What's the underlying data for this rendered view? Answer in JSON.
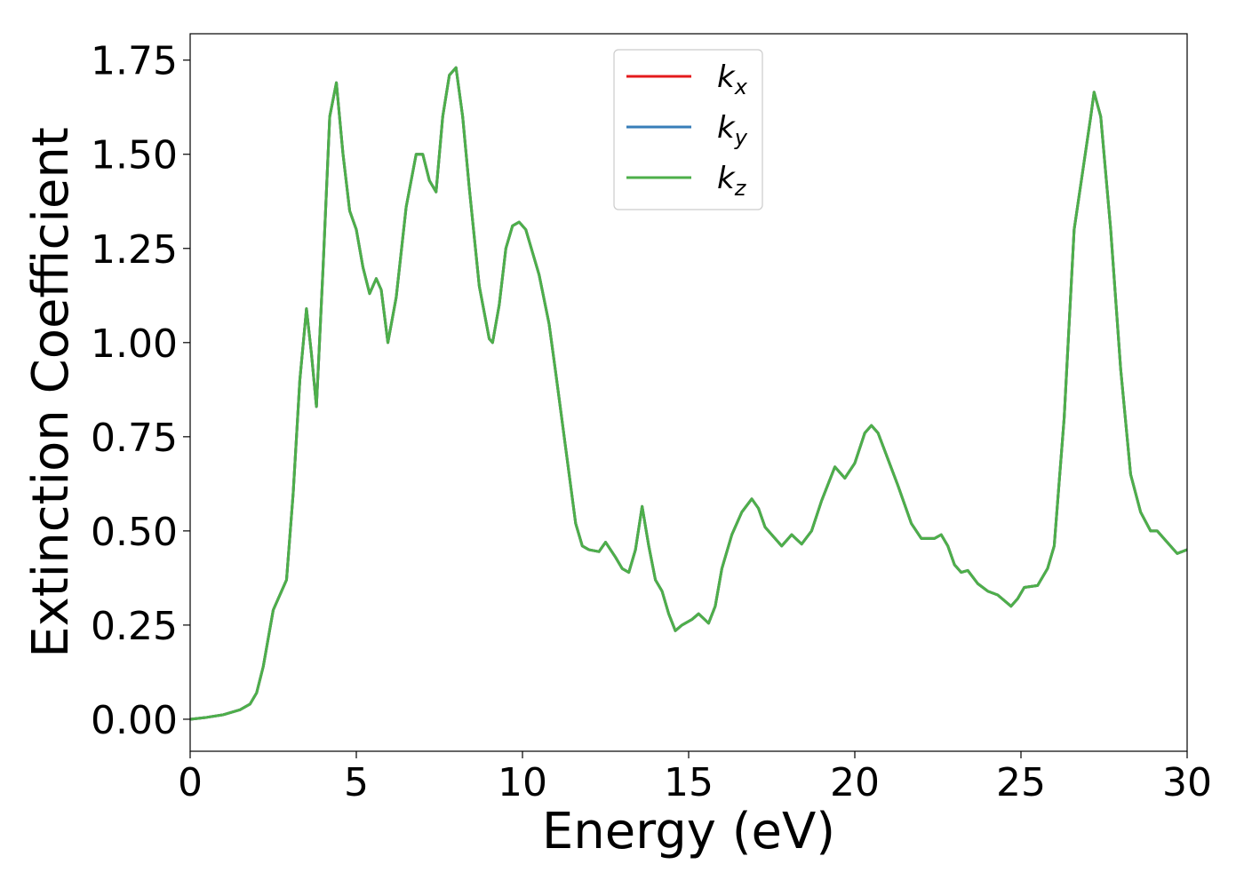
{
  "chart_data": {
    "type": "line",
    "xlabel": "Energy (eV)",
    "ylabel": "Extinction Coefficient",
    "xlim": [
      0,
      30
    ],
    "ylim": [
      -0.085,
      1.82
    ],
    "x_ticks": [
      "0",
      "5",
      "10",
      "15",
      "20",
      "25",
      "30"
    ],
    "x_tick_values": [
      0,
      5,
      10,
      15,
      20,
      25,
      30
    ],
    "y_ticks": [
      "0.00",
      "0.25",
      "0.50",
      "0.75",
      "1.00",
      "1.25",
      "1.50",
      "1.75"
    ],
    "y_tick_values": [
      0,
      0.25,
      0.5,
      0.75,
      1.0,
      1.25,
      1.5,
      1.75
    ],
    "grid": false,
    "legend_position": "top-center",
    "x": [
      0,
      0.5,
      1.0,
      1.5,
      1.8,
      2.0,
      2.2,
      2.5,
      2.7,
      2.9,
      3.1,
      3.3,
      3.5,
      3.65,
      3.8,
      4.0,
      4.2,
      4.4,
      4.6,
      4.8,
      5.0,
      5.2,
      5.4,
      5.6,
      5.75,
      5.95,
      6.2,
      6.5,
      6.8,
      7.0,
      7.2,
      7.4,
      7.6,
      7.8,
      8.0,
      8.2,
      8.4,
      8.7,
      9.0,
      9.1,
      9.3,
      9.5,
      9.7,
      9.9,
      10.1,
      10.3,
      10.5,
      10.8,
      11.0,
      11.3,
      11.6,
      11.8,
      12.0,
      12.3,
      12.5,
      12.8,
      13.0,
      13.2,
      13.4,
      13.6,
      13.8,
      14.0,
      14.2,
      14.4,
      14.6,
      14.8,
      15.1,
      15.3,
      15.6,
      15.8,
      16.0,
      16.3,
      16.6,
      16.9,
      17.1,
      17.3,
      17.6,
      17.8,
      18.1,
      18.4,
      18.7,
      19.0,
      19.4,
      19.7,
      20.0,
      20.3,
      20.5,
      20.7,
      21.0,
      21.3,
      21.7,
      22.0,
      22.4,
      22.6,
      22.8,
      23.0,
      23.2,
      23.4,
      23.7,
      24.0,
      24.3,
      24.7,
      24.9,
      25.1,
      25.5,
      25.8,
      26.0,
      26.3,
      26.6,
      26.9,
      27.1,
      27.2,
      27.4,
      27.7,
      28.0,
      28.3,
      28.6,
      28.9,
      29.1,
      29.4,
      29.7,
      30.0
    ],
    "series": [
      {
        "name": "k_x",
        "color": "#e41a1c",
        "values": [
          0.0,
          0.005,
          0.012,
          0.025,
          0.04,
          0.07,
          0.14,
          0.29,
          0.33,
          0.37,
          0.6,
          0.9,
          1.09,
          0.97,
          0.83,
          1.2,
          1.6,
          1.69,
          1.5,
          1.35,
          1.3,
          1.2,
          1.13,
          1.17,
          1.14,
          1.0,
          1.12,
          1.36,
          1.5,
          1.5,
          1.43,
          1.4,
          1.6,
          1.71,
          1.73,
          1.6,
          1.41,
          1.15,
          1.01,
          1.0,
          1.1,
          1.25,
          1.31,
          1.32,
          1.3,
          1.24,
          1.18,
          1.05,
          0.92,
          0.72,
          0.52,
          0.46,
          0.45,
          0.445,
          0.47,
          0.43,
          0.4,
          0.39,
          0.45,
          0.565,
          0.46,
          0.37,
          0.34,
          0.28,
          0.235,
          0.25,
          0.265,
          0.28,
          0.255,
          0.3,
          0.4,
          0.49,
          0.55,
          0.585,
          0.56,
          0.51,
          0.48,
          0.46,
          0.49,
          0.465,
          0.5,
          0.58,
          0.67,
          0.64,
          0.68,
          0.76,
          0.78,
          0.76,
          0.69,
          0.62,
          0.52,
          0.48,
          0.48,
          0.49,
          0.46,
          0.41,
          0.39,
          0.395,
          0.36,
          0.34,
          0.33,
          0.3,
          0.32,
          0.35,
          0.355,
          0.4,
          0.46,
          0.8,
          1.3,
          1.48,
          1.6,
          1.665,
          1.6,
          1.3,
          0.93,
          0.65,
          0.55,
          0.5,
          0.5,
          0.47,
          0.44,
          0.45
        ]
      },
      {
        "name": "k_y",
        "color": "#377eb8",
        "values": [
          0.0,
          0.005,
          0.012,
          0.025,
          0.04,
          0.07,
          0.14,
          0.29,
          0.33,
          0.37,
          0.6,
          0.9,
          1.09,
          0.97,
          0.83,
          1.2,
          1.6,
          1.69,
          1.5,
          1.35,
          1.3,
          1.2,
          1.13,
          1.17,
          1.14,
          1.0,
          1.12,
          1.36,
          1.5,
          1.5,
          1.43,
          1.4,
          1.6,
          1.71,
          1.73,
          1.6,
          1.41,
          1.15,
          1.01,
          1.0,
          1.1,
          1.25,
          1.31,
          1.32,
          1.3,
          1.24,
          1.18,
          1.05,
          0.92,
          0.72,
          0.52,
          0.46,
          0.45,
          0.445,
          0.47,
          0.43,
          0.4,
          0.39,
          0.45,
          0.565,
          0.46,
          0.37,
          0.34,
          0.28,
          0.235,
          0.25,
          0.265,
          0.28,
          0.255,
          0.3,
          0.4,
          0.49,
          0.55,
          0.585,
          0.56,
          0.51,
          0.48,
          0.46,
          0.49,
          0.465,
          0.5,
          0.58,
          0.67,
          0.64,
          0.68,
          0.76,
          0.78,
          0.76,
          0.69,
          0.62,
          0.52,
          0.48,
          0.48,
          0.49,
          0.46,
          0.41,
          0.39,
          0.395,
          0.36,
          0.34,
          0.33,
          0.3,
          0.32,
          0.35,
          0.355,
          0.4,
          0.46,
          0.8,
          1.3,
          1.48,
          1.6,
          1.665,
          1.6,
          1.3,
          0.93,
          0.65,
          0.55,
          0.5,
          0.5,
          0.47,
          0.44,
          0.45
        ]
      },
      {
        "name": "k_z",
        "color": "#4daf4a",
        "values": [
          0.0,
          0.005,
          0.012,
          0.025,
          0.04,
          0.07,
          0.14,
          0.29,
          0.33,
          0.37,
          0.6,
          0.9,
          1.09,
          0.97,
          0.83,
          1.2,
          1.6,
          1.69,
          1.5,
          1.35,
          1.3,
          1.2,
          1.13,
          1.17,
          1.14,
          1.0,
          1.12,
          1.36,
          1.5,
          1.5,
          1.43,
          1.4,
          1.6,
          1.71,
          1.73,
          1.6,
          1.41,
          1.15,
          1.01,
          1.0,
          1.1,
          1.25,
          1.31,
          1.32,
          1.3,
          1.24,
          1.18,
          1.05,
          0.92,
          0.72,
          0.52,
          0.46,
          0.45,
          0.445,
          0.47,
          0.43,
          0.4,
          0.39,
          0.45,
          0.565,
          0.46,
          0.37,
          0.34,
          0.28,
          0.235,
          0.25,
          0.265,
          0.28,
          0.255,
          0.3,
          0.4,
          0.49,
          0.55,
          0.585,
          0.56,
          0.51,
          0.48,
          0.46,
          0.49,
          0.465,
          0.5,
          0.58,
          0.67,
          0.64,
          0.68,
          0.76,
          0.78,
          0.76,
          0.69,
          0.62,
          0.52,
          0.48,
          0.48,
          0.49,
          0.46,
          0.41,
          0.39,
          0.395,
          0.36,
          0.34,
          0.33,
          0.3,
          0.32,
          0.35,
          0.355,
          0.4,
          0.46,
          0.8,
          1.3,
          1.48,
          1.6,
          1.665,
          1.6,
          1.3,
          0.93,
          0.65,
          0.55,
          0.5,
          0.5,
          0.47,
          0.44,
          0.45
        ]
      }
    ],
    "legend": [
      {
        "base": "k",
        "sub": "x",
        "color": "#e41a1c"
      },
      {
        "base": "k",
        "sub": "y",
        "color": "#377eb8"
      },
      {
        "base": "k",
        "sub": "z",
        "color": "#4daf4a"
      }
    ]
  }
}
